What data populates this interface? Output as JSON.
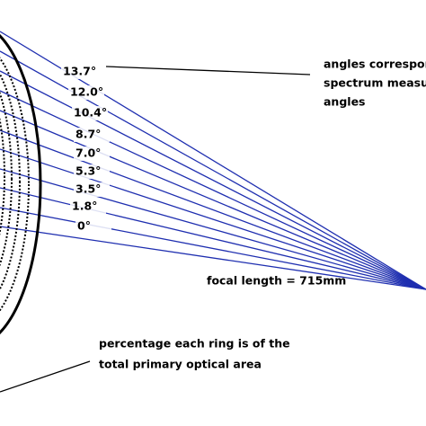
{
  "angle_labels": [
    "13.7°",
    "12.0°",
    "10.4°",
    "8.7°",
    "7.0°",
    "5.3°",
    "3.5°",
    "1.8°",
    "0°"
  ],
  "annotations": {
    "angles_note": [
      "angles correspon",
      "spectrum measur",
      "angles"
    ],
    "focal_length": "focal length = 715mm",
    "ring_note": [
      "percentage each ring is of the",
      "total primary optical area"
    ]
  }
}
